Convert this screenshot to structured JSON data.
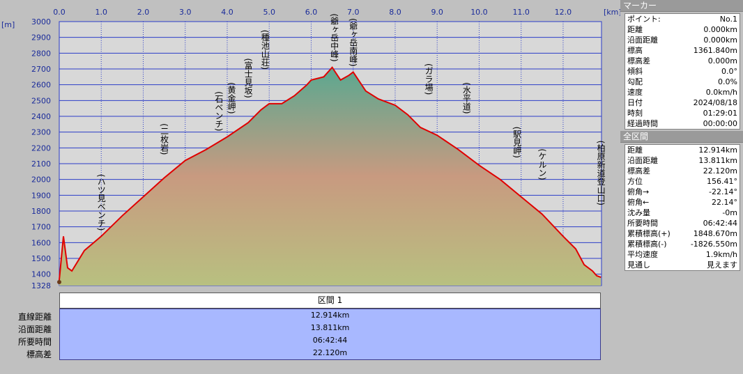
{
  "chart_data": {
    "type": "area",
    "x_unit": "[km]",
    "y_unit": "[m]",
    "xlim": [
      0,
      12.914
    ],
    "ylim": [
      1328,
      3000
    ],
    "x_ticks": [
      "0.0",
      "1.0",
      "2.0",
      "3.0",
      "4.0",
      "5.0",
      "6.0",
      "7.0",
      "8.0",
      "9.0",
      "10.0",
      "11.0",
      "12.0"
    ],
    "y_ticks": [
      "3000",
      "2900",
      "2800",
      "2700",
      "2600",
      "2500",
      "2400",
      "2300",
      "2200",
      "2100",
      "2000",
      "1900",
      "1800",
      "1700",
      "1600",
      "1500",
      "1400",
      "1328"
    ],
    "series": [
      {
        "x": [
          0,
          0.1,
          0.2,
          0.3,
          0.6,
          1.0,
          1.5,
          2.0,
          2.5,
          3.0,
          3.5,
          4.0,
          4.5,
          4.8,
          5.0,
          5.3,
          5.6,
          5.9,
          6.0,
          6.3,
          6.5,
          6.7,
          6.9,
          7.0,
          7.3,
          7.6,
          8.0,
          8.3,
          8.6,
          9.0,
          9.5,
          10.0,
          10.5,
          11.0,
          11.5,
          12.0,
          12.3,
          12.5,
          12.7,
          12.8,
          12.9
        ],
        "y": [
          1362,
          1640,
          1440,
          1420,
          1550,
          1640,
          1770,
          1890,
          2010,
          2120,
          2190,
          2270,
          2360,
          2440,
          2480,
          2480,
          2530,
          2600,
          2630,
          2650,
          2710,
          2630,
          2660,
          2680,
          2560,
          2510,
          2470,
          2410,
          2330,
          2280,
          2190,
          2090,
          2000,
          1890,
          1780,
          1640,
          1560,
          1460,
          1420,
          1390,
          1380
        ]
      }
    ]
  },
  "waypoints": [
    {
      "label": "(ハツ見ベンチ)",
      "x": 1.0,
      "y": 1640
    },
    {
      "label": "(二枚岩)",
      "x": 2.5,
      "y": 2120
    },
    {
      "label": "(石ベンチ)",
      "x": 3.8,
      "y": 2270
    },
    {
      "label": "(黄金岬)",
      "x": 4.1,
      "y": 2380
    },
    {
      "label": "(富士見坂)",
      "x": 4.5,
      "y": 2480
    },
    {
      "label": "(種池山荘)",
      "x": 4.9,
      "y": 2660
    },
    {
      "label": "(爺ヶ岳中峰)",
      "x": 6.55,
      "y": 2710
    },
    {
      "label": "(爺ヶ岳南峰)",
      "x": 7.0,
      "y": 2680
    },
    {
      "label": "(ガラ場)",
      "x": 8.8,
      "y": 2500
    },
    {
      "label": "(水平道)",
      "x": 9.7,
      "y": 2380
    },
    {
      "label": "(駅見岬)",
      "x": 10.9,
      "y": 2100
    },
    {
      "label": "(ケルン)",
      "x": 11.5,
      "y": 1960
    },
    {
      "label": "(柏原新道登山口)",
      "x": 12.9,
      "y": 1800
    }
  ],
  "colors": {
    "profile_line": "#e00000",
    "grid_line": "#2b3cc8",
    "area_top": "#5aa890",
    "area_mid": "#c89a80",
    "area_bottom": "#b8c080",
    "plot_bg": "#d8d8d8",
    "summary_bg": "#a8b8ff"
  },
  "section": {
    "title": "区間 1",
    "labels": [
      "直線距離",
      "沿面距離",
      "所要時間",
      "標高差"
    ],
    "values": [
      "12.914km",
      "13.811km",
      "06:42:44",
      "22.120m"
    ]
  },
  "marker_panel": {
    "title": "マーカー",
    "rows": [
      {
        "k": "ポイント:",
        "v": "No.1"
      },
      {
        "k": "距離",
        "v": "0.000km"
      },
      {
        "k": "沿面距離",
        "v": "0.000km"
      },
      {
        "k": "標高",
        "v": "1361.840m"
      },
      {
        "k": "標高差",
        "v": "0.000m"
      },
      {
        "k": "傾斜",
        "v": "0.0°"
      },
      {
        "k": "勾配",
        "v": "0.0%"
      },
      {
        "k": "速度",
        "v": "0.0km/h"
      },
      {
        "k": "日付",
        "v": "2024/08/18"
      },
      {
        "k": "時刻",
        "v": "01:29:01"
      },
      {
        "k": "経過時間",
        "v": "00:00:00"
      }
    ]
  },
  "all_panel": {
    "title": "全区間",
    "rows": [
      {
        "k": "距離",
        "v": "12.914km"
      },
      {
        "k": "沿面距離",
        "v": "13.811km"
      },
      {
        "k": "標高差",
        "v": "22.120m"
      },
      {
        "k": "方位",
        "v": "156.41°"
      },
      {
        "k": "俯角→",
        "v": "-22.14°"
      },
      {
        "k": "俯角←",
        "v": "22.14°"
      },
      {
        "k": "沈み量",
        "v": "-0m"
      },
      {
        "k": "所要時間",
        "v": "06:42:44"
      },
      {
        "k": "累積標高(+)",
        "v": "1848.670m"
      },
      {
        "k": "累積標高(-)",
        "v": "-1826.550m"
      },
      {
        "k": "平均速度",
        "v": "1.9km/h"
      },
      {
        "k": "見通し",
        "v": "見えます"
      }
    ]
  }
}
